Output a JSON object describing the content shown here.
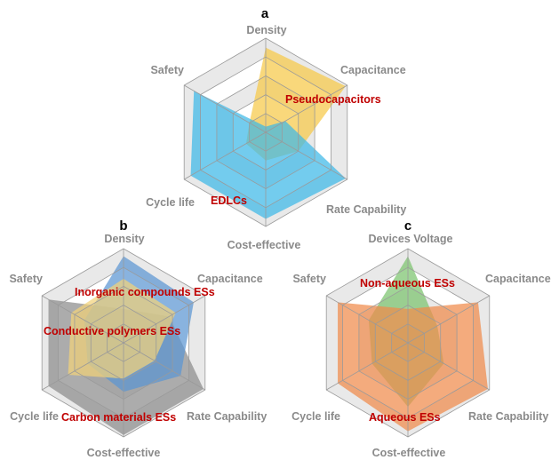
{
  "chart_data": [
    {
      "type": "radar",
      "panel": "a",
      "axes": [
        "Density",
        "Capacitance",
        "Rate Capability",
        "Cost-effective",
        "Cycle life",
        "Safety"
      ],
      "rlim": [
        0,
        5
      ],
      "grid": true,
      "series": [
        {
          "name": "Pseudocapacitors",
          "values": [
            4.5,
            4.9,
            2.0,
            1.5,
            1.2,
            1.0
          ],
          "color": "#F7C948"
        },
        {
          "name": "EDLCs",
          "values": [
            0.3,
            1.2,
            4.9,
            4.6,
            4.6,
            4.4
          ],
          "color": "#3DB8E8"
        }
      ]
    },
    {
      "type": "radar",
      "panel": "b",
      "axes": [
        "Density",
        "Capacitance",
        "Rate Capability",
        "Cost-effective",
        "Cycle life",
        "Safety"
      ],
      "rlim": [
        0,
        5
      ],
      "grid": true,
      "series": [
        {
          "name": "Carbon materials ESs",
          "values": [
            1.8,
            2.8,
            4.9,
            4.9,
            4.6,
            4.6
          ],
          "color": "#8C8C8C"
        },
        {
          "name": "Inorganic compounds ESs",
          "values": [
            4.6,
            4.3,
            3.5,
            2.6,
            2.2,
            2.4
          ],
          "color": "#5B95D2"
        },
        {
          "name": "Conductive polymers ESs",
          "values": [
            3.4,
            3.2,
            1.9,
            1.9,
            3.4,
            3.2
          ],
          "color": "#F2D27A"
        }
      ]
    },
    {
      "type": "radar",
      "panel": "c",
      "axes": [
        "Devices Voltage",
        "Capacitance",
        "Rate Capability",
        "Cost-effective",
        "Cycle life",
        "Safety"
      ],
      "rlim": [
        0,
        5
      ],
      "grid": true,
      "series": [
        {
          "name": "Non-aqueous ESs",
          "values": [
            4.6,
            1.8,
            2.2,
            3.4,
            2.2,
            2.4
          ],
          "color": "#7CC36E"
        },
        {
          "name": "Aqueous ESs",
          "values": [
            1.8,
            4.3,
            4.9,
            4.7,
            4.3,
            4.3
          ],
          "color": "#F08A4B"
        }
      ]
    }
  ],
  "panels": [
    {
      "letter": "a",
      "axis_labels": [
        "Density",
        "Capacitance",
        "Rate Capability",
        "Cost-effective",
        "Cycle life",
        "Safety"
      ],
      "series_labels": [
        "Pseudocapacitors",
        "EDLCs"
      ]
    },
    {
      "letter": "b",
      "axis_labels": [
        "Density",
        "Capacitance",
        "Rate Capability",
        "Cost-effective",
        "Cycle life",
        "Safety"
      ],
      "series_labels": [
        "Inorganic compounds ESs",
        "Conductive polymers ESs",
        "Carbon materials ESs"
      ]
    },
    {
      "letter": "c",
      "axis_labels": [
        "Devices Voltage",
        "Capacitance",
        "Rate Capability",
        "Cost-effective",
        "Cycle life",
        "Safety"
      ],
      "series_labels": [
        "Non-aqueous ESs",
        "Aqueous ESs"
      ]
    }
  ]
}
